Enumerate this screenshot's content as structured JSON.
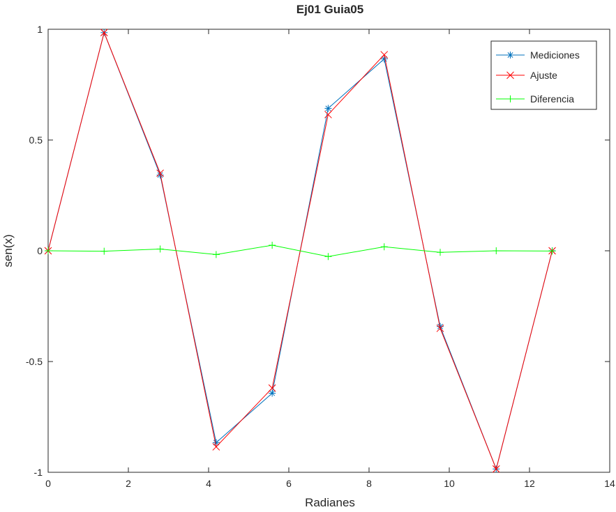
{
  "chart_data": {
    "type": "line",
    "title": "Ej01 Guia05",
    "xlabel": "Radianes",
    "ylabel": "sen(x)",
    "xlim": [
      0,
      14
    ],
    "ylim": [
      -1,
      1
    ],
    "xticks": [
      0,
      2,
      4,
      6,
      8,
      10,
      12,
      14
    ],
    "yticks": [
      -1,
      -0.5,
      0,
      0.5,
      1
    ],
    "xtick_labels": [
      "0",
      "2",
      "4",
      "6",
      "8",
      "10",
      "12",
      "14"
    ],
    "ytick_labels": [
      "-1",
      "-0.5",
      "0",
      "0.5",
      "1"
    ],
    "grid": false,
    "legend_position": "top-right",
    "x": [
      0,
      1.396,
      2.793,
      4.189,
      5.585,
      6.981,
      8.378,
      9.774,
      11.17,
      12.566
    ],
    "series": [
      {
        "name": "Mediciones",
        "color": "#0072bd",
        "marker": "asterisk",
        "values": [
          0,
          0.985,
          0.342,
          -0.866,
          -0.643,
          0.643,
          0.866,
          -0.342,
          -0.985,
          0
        ]
      },
      {
        "name": "Ajuste",
        "color": "#ff0000",
        "marker": "cross",
        "values": [
          0,
          0.985,
          0.35,
          -0.885,
          -0.62,
          0.615,
          0.885,
          -0.35,
          -0.985,
          0
        ]
      },
      {
        "name": "Diferencia",
        "color": "#00ff00",
        "marker": "plus",
        "values": [
          0,
          -0.002,
          0.008,
          -0.017,
          0.025,
          -0.026,
          0.018,
          -0.007,
          0,
          -0.001
        ]
      }
    ]
  }
}
